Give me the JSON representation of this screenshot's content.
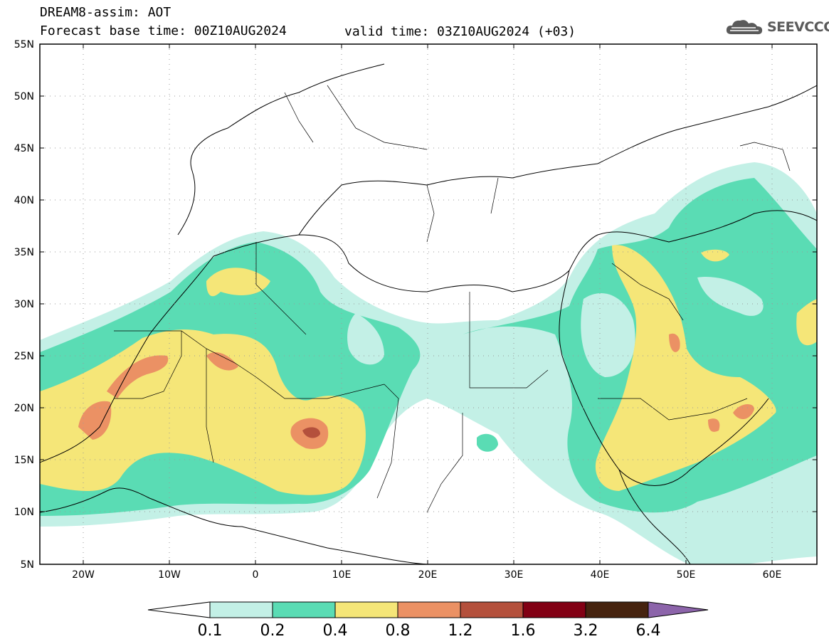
{
  "header": {
    "model_line": "DREAM8-assim: AOT",
    "base_time_line": "Forecast base time: 00Z10AUG2024",
    "valid_time_line": "valid time: 03Z10AUG2024 (+03)"
  },
  "logo": {
    "text": "SEEVCCC",
    "icon": "cloud-icon"
  },
  "map": {
    "variable": "AOT",
    "region": "North Africa / Middle East / Europe",
    "lon_range": [
      -25,
      65
    ],
    "lat_range": [
      5,
      55
    ],
    "grid": true,
    "lat_ticks": [
      "55N",
      "50N",
      "45N",
      "40N",
      "35N",
      "30N",
      "25N",
      "20N",
      "15N",
      "10N",
      "5N"
    ],
    "lon_ticks": [
      "20W",
      "10W",
      "0",
      "10E",
      "20E",
      "30E",
      "40E",
      "50E",
      "60E"
    ]
  },
  "colorbar": {
    "labels": [
      "0.1",
      "0.2",
      "0.4",
      "0.8",
      "1.2",
      "1.6",
      "3.2",
      "6.4"
    ],
    "colors": [
      "#ffffff",
      "#c3f0e6",
      "#5adcb4",
      "#f5e678",
      "#eb9164",
      "#b4503c",
      "#820014",
      "#46230f",
      "#8c64aa"
    ]
  }
}
